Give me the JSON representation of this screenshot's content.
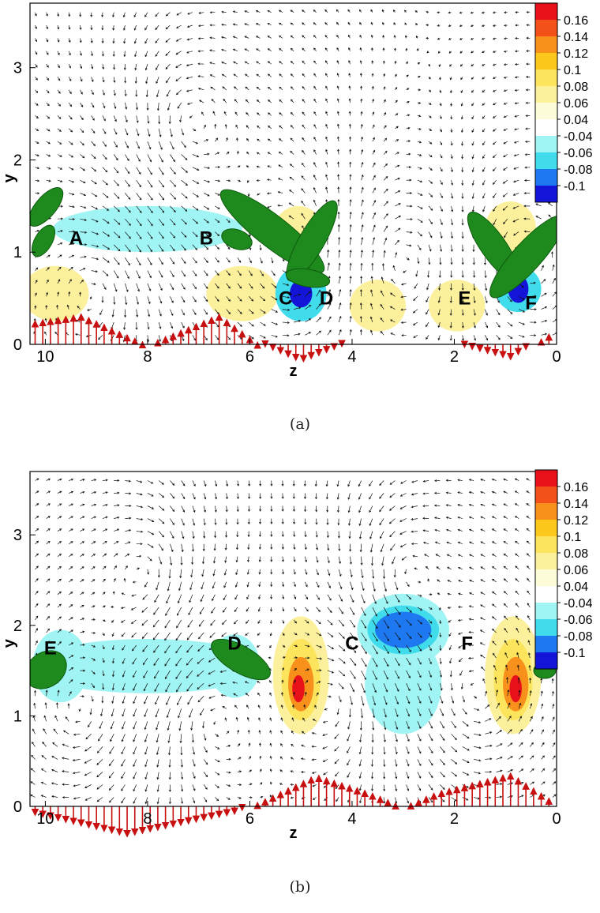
{
  "captions": [
    "(a)",
    "(b)"
  ],
  "colorbar": {
    "labels": [
      "0.16",
      "0.14",
      "0.12",
      "0.1",
      "0.08",
      "0.06",
      "0.04",
      "-0.04",
      "-0.06",
      "-0.08",
      "-0.1"
    ],
    "colors": [
      "#e8101a",
      "#f4501a",
      "#f8901c",
      "#fcc81c",
      "#fce45c",
      "#fcf09c",
      "#fcfcd8",
      "#ffffff",
      "#a0f4f4",
      "#40dcec",
      "#1e78f0",
      "#1414d8"
    ]
  },
  "chart_data": [
    {
      "type": "contour",
      "panel": "(a)",
      "xlabel": "z",
      "ylabel": "y",
      "xlim": [
        10.3,
        0
      ],
      "ylim": [
        0,
        3.7
      ],
      "x_ticks": [
        "10",
        "8",
        "6",
        "4",
        "2",
        "0"
      ],
      "y_ticks": [
        "0",
        "1",
        "2",
        "3"
      ],
      "point_labels": [
        {
          "text": "A",
          "z": 9.4,
          "y": 1.15
        },
        {
          "text": "B",
          "z": 6.85,
          "y": 1.15
        },
        {
          "text": "C",
          "z": 5.3,
          "y": 0.5
        },
        {
          "text": "D",
          "z": 4.5,
          "y": 0.5
        },
        {
          "text": "E",
          "z": 1.8,
          "y": 0.5
        },
        {
          "text": "F",
          "z": 0.5,
          "y": 0.45
        }
      ],
      "contour_regions": [
        {
          "z": 8.0,
          "y": 1.25,
          "rz": 1.85,
          "ry": 0.25,
          "value": -0.04
        },
        {
          "z": 5.05,
          "y": 1.2,
          "rz": 0.5,
          "ry": 0.3,
          "value": 0.06
        },
        {
          "z": 9.8,
          "y": 0.55,
          "rz": 0.65,
          "ry": 0.3,
          "value": 0.06
        },
        {
          "z": 6.15,
          "y": 0.55,
          "rz": 0.7,
          "ry": 0.3,
          "value": 0.06
        },
        {
          "z": 3.5,
          "y": 0.42,
          "rz": 0.55,
          "ry": 0.28,
          "value": 0.06
        },
        {
          "z": 1.95,
          "y": 0.42,
          "rz": 0.55,
          "ry": 0.28,
          "value": 0.06
        },
        {
          "z": 5.0,
          "y": 0.55,
          "rz": 0.5,
          "ry": 0.3,
          "value": -0.06
        },
        {
          "z": 5.0,
          "y": 0.55,
          "rz": 0.22,
          "ry": 0.15,
          "value": -0.1
        },
        {
          "z": 0.75,
          "y": 0.6,
          "rz": 0.45,
          "ry": 0.25,
          "value": -0.06
        },
        {
          "z": 0.75,
          "y": 0.6,
          "rz": 0.2,
          "ry": 0.15,
          "value": -0.1
        },
        {
          "z": 0.9,
          "y": 1.25,
          "rz": 0.5,
          "ry": 0.3,
          "value": 0.06
        }
      ],
      "wall_velocity_profile": [
        {
          "z": 10.3,
          "v": 0.15
        },
        {
          "z": 9.3,
          "v": 0.2
        },
        {
          "z": 8.0,
          "v": 0.0
        },
        {
          "z": 6.6,
          "v": 0.2
        },
        {
          "z": 5.8,
          "v": 0.0
        },
        {
          "z": 5.0,
          "v": -0.12
        },
        {
          "z": 4.1,
          "v": 0.0
        },
        {
          "z": 2.0,
          "v": 0.0
        },
        {
          "z": 0.9,
          "v": -0.1
        },
        {
          "z": 0.0,
          "v": 0.1
        }
      ]
    },
    {
      "type": "contour",
      "panel": "(b)",
      "xlabel": "z",
      "ylabel": "y",
      "xlim": [
        10.3,
        0
      ],
      "ylim": [
        0,
        3.7
      ],
      "x_ticks": [
        "10",
        "8",
        "6",
        "4",
        "2",
        "0"
      ],
      "y_ticks": [
        "0",
        "1",
        "2",
        "3"
      ],
      "point_labels": [
        {
          "text": "E",
          "z": 9.9,
          "y": 1.75
        },
        {
          "text": "D",
          "z": 6.3,
          "y": 1.8
        },
        {
          "text": "C",
          "z": 4.0,
          "y": 1.8
        },
        {
          "text": "F",
          "z": 1.75,
          "y": 1.8
        }
      ],
      "contour_regions": [
        {
          "z": 8.0,
          "y": 1.55,
          "rz": 2.3,
          "ry": 0.3,
          "value": -0.04
        },
        {
          "z": 9.7,
          "y": 1.55,
          "rz": 0.55,
          "ry": 0.4,
          "value": -0.04
        },
        {
          "z": 6.3,
          "y": 1.55,
          "rz": 0.5,
          "ry": 0.35,
          "value": -0.04
        },
        {
          "z": 3.0,
          "y": 1.35,
          "rz": 0.75,
          "ry": 0.55,
          "value": -0.04
        },
        {
          "z": 3.0,
          "y": 1.95,
          "rz": 0.9,
          "ry": 0.4,
          "value": -0.04
        },
        {
          "z": 3.0,
          "y": 1.95,
          "rz": 0.7,
          "ry": 0.27,
          "value": -0.06
        },
        {
          "z": 3.0,
          "y": 1.95,
          "rz": 0.55,
          "ry": 0.2,
          "value": -0.08
        },
        {
          "z": 5.0,
          "y": 1.45,
          "rz": 0.55,
          "ry": 0.65,
          "value": 0.06
        },
        {
          "z": 5.0,
          "y": 1.4,
          "rz": 0.38,
          "ry": 0.45,
          "value": 0.08
        },
        {
          "z": 5.0,
          "y": 1.35,
          "rz": 0.25,
          "ry": 0.3,
          "value": 0.12
        },
        {
          "z": 5.05,
          "y": 1.3,
          "rz": 0.12,
          "ry": 0.15,
          "value": 0.16
        },
        {
          "z": 0.85,
          "y": 1.45,
          "rz": 0.55,
          "ry": 0.65,
          "value": 0.06
        },
        {
          "z": 0.85,
          "y": 1.4,
          "rz": 0.38,
          "ry": 0.45,
          "value": 0.08
        },
        {
          "z": 0.8,
          "y": 1.35,
          "rz": 0.25,
          "ry": 0.3,
          "value": 0.12
        },
        {
          "z": 0.8,
          "y": 1.3,
          "rz": 0.12,
          "ry": 0.15,
          "value": 0.16
        }
      ],
      "wall_velocity_profile": [
        {
          "z": 10.3,
          "v": -0.05
        },
        {
          "z": 8.4,
          "v": -0.2
        },
        {
          "z": 6.3,
          "v": -0.05
        },
        {
          "z": 6.0,
          "v": 0.0
        },
        {
          "z": 4.7,
          "v": 0.21
        },
        {
          "z": 3.7,
          "v": 0.1
        },
        {
          "z": 3.0,
          "v": 0.0
        },
        {
          "z": 2.3,
          "v": 0.1
        },
        {
          "z": 0.9,
          "v": 0.22
        },
        {
          "z": 0.0,
          "v": 0.02
        }
      ]
    }
  ]
}
